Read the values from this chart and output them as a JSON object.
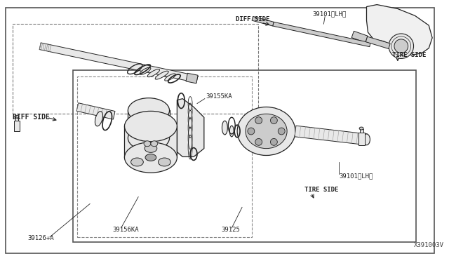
{
  "bg_color": "#ffffff",
  "border_color": "#555555",
  "line_color": "#222222",
  "fill_light": "#e8e8e8",
  "fill_mid": "#cccccc",
  "fill_dark": "#aaaaaa",
  "part_number_main": "X391003V",
  "labels": {
    "diff_side_left": "DIFF SIDE",
    "diff_side_upper": "DIFF SIDE",
    "tire_side_right": "TIRE SIDE",
    "tire_side_lower": "TIRE SIDE",
    "part_39101_lh_upper": "39101〈LH〉",
    "part_39101_lh_lower": "39101〈LH〉",
    "part_39155ka": "39155KA",
    "part_39156ka": "39156KA",
    "part_39126a": "39126+A",
    "part_39125": "39125"
  },
  "figsize": [
    6.4,
    3.72
  ],
  "dpi": 100
}
